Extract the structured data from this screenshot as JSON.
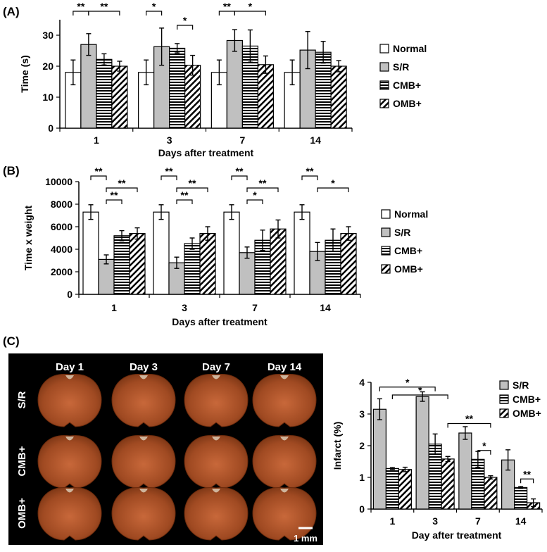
{
  "colors": {
    "normal": "#ffffff",
    "sr": "#c0c0c0",
    "stroke": "#000000",
    "photo_bg": "#000000",
    "brain": "#b5582a"
  },
  "chart_data": [
    {
      "panel_label": "(A)",
      "type": "bar",
      "categories": [
        "1",
        "3",
        "7",
        "14"
      ],
      "xlabel": "Days after treatment",
      "ylabel": "Time (s)",
      "ylim": [
        0,
        35
      ],
      "yticks": [
        0,
        10,
        20,
        30
      ],
      "legend_position": "right",
      "series": [
        {
          "name": "Normal",
          "fill": "normal",
          "values": [
            18,
            18,
            18,
            18
          ],
          "errors": [
            4,
            4,
            4,
            4
          ]
        },
        {
          "name": "S/R",
          "fill": "sr",
          "values": [
            27,
            26.3,
            28.3,
            25.2
          ],
          "errors": [
            3.5,
            6,
            3.5,
            6
          ]
        },
        {
          "name": "CMB+",
          "fill": "hlines",
          "values": [
            22.2,
            25.8,
            26.5,
            24.5
          ],
          "errors": [
            1.8,
            1.5,
            5.2,
            3.5
          ]
        },
        {
          "name": "OMB+",
          "fill": "diag",
          "values": [
            20,
            20.3,
            20.5,
            20
          ],
          "errors": [
            1.6,
            3.2,
            2.8,
            1.8
          ]
        }
      ],
      "significance": [
        {
          "category": 0,
          "from": 0,
          "to": 1,
          "label": "**",
          "level": 1
        },
        {
          "category": 0,
          "from": 1,
          "to": 3,
          "label": "**",
          "level": 1
        },
        {
          "category": 1,
          "from": 0,
          "to": 1,
          "label": "*",
          "level": 1
        },
        {
          "category": 1,
          "from": 2,
          "to": 3,
          "label": "*",
          "level": 0
        },
        {
          "category": 2,
          "from": 0,
          "to": 1,
          "label": "**",
          "level": 1
        },
        {
          "category": 2,
          "from": 1,
          "to": 3,
          "label": "*",
          "level": 1
        }
      ]
    },
    {
      "panel_label": "(B)",
      "type": "bar",
      "categories": [
        "1",
        "3",
        "7",
        "14"
      ],
      "xlabel": "Days after treatment",
      "ylabel": "Time x weight",
      "ylim": [
        0,
        10000
      ],
      "yticks": [
        0,
        2000,
        4000,
        6000,
        8000,
        10000
      ],
      "legend_position": "right",
      "series": [
        {
          "name": "Normal",
          "fill": "normal",
          "values": [
            7300,
            7300,
            7300,
            7300
          ],
          "errors": [
            650,
            650,
            650,
            650
          ]
        },
        {
          "name": "S/R",
          "fill": "sr",
          "values": [
            3100,
            2800,
            3700,
            3800
          ],
          "errors": [
            400,
            500,
            500,
            800
          ]
        },
        {
          "name": "CMB+",
          "fill": "hlines",
          "values": [
            5200,
            4500,
            4800,
            4800
          ],
          "errors": [
            450,
            500,
            900,
            1000
          ]
        },
        {
          "name": "OMB+",
          "fill": "diag",
          "values": [
            5400,
            5400,
            5800,
            5400
          ],
          "errors": [
            500,
            600,
            800,
            600
          ]
        }
      ],
      "significance": [
        {
          "category": 0,
          "from": 0,
          "to": 1,
          "label": "**",
          "level": 2
        },
        {
          "category": 0,
          "from": 1,
          "to": 2,
          "label": "**",
          "level": 0
        },
        {
          "category": 0,
          "from": 1,
          "to": 3,
          "label": "**",
          "level": 1
        },
        {
          "category": 1,
          "from": 0,
          "to": 1,
          "label": "**",
          "level": 2
        },
        {
          "category": 1,
          "from": 1,
          "to": 2,
          "label": "**",
          "level": 0
        },
        {
          "category": 1,
          "from": 1,
          "to": 3,
          "label": "**",
          "level": 1
        },
        {
          "category": 2,
          "from": 0,
          "to": 1,
          "label": "**",
          "level": 2
        },
        {
          "category": 2,
          "from": 1,
          "to": 2,
          "label": "*",
          "level": 0
        },
        {
          "category": 2,
          "from": 1,
          "to": 3,
          "label": "**",
          "level": 1
        },
        {
          "category": 3,
          "from": 0,
          "to": 1,
          "label": "**",
          "level": 2
        },
        {
          "category": 3,
          "from": 1,
          "to": 3,
          "label": "*",
          "level": 1
        }
      ]
    },
    {
      "panel_label": "(C)",
      "type": "bar",
      "categories": [
        "1",
        "3",
        "7",
        "14"
      ],
      "xlabel": "Day after treatment",
      "ylabel": "Infarct (%)",
      "ylim": [
        0,
        4
      ],
      "yticks": [
        0,
        1,
        2,
        3,
        4
      ],
      "legend_position": "top-right",
      "series": [
        {
          "name": "S/R",
          "fill": "sr",
          "values": [
            3.15,
            3.55,
            2.4,
            1.55
          ],
          "errors": [
            0.33,
            0.15,
            0.2,
            0.32
          ]
        },
        {
          "name": "CMB+",
          "fill": "hlines",
          "values": [
            1.28,
            2.05,
            1.57,
            0.68
          ],
          "errors": [
            0.03,
            0.32,
            0.25,
            0.03
          ]
        },
        {
          "name": "OMB+",
          "fill": "diag",
          "values": [
            1.25,
            1.58,
            1.0,
            0.2
          ],
          "errors": [
            0.07,
            0.08,
            0.05,
            0.12
          ]
        }
      ],
      "significance": [
        {
          "from": [
            0,
            0
          ],
          "to": [
            1,
            1
          ],
          "label": "*",
          "y": 3.85
        },
        {
          "from": [
            0,
            1
          ],
          "to": [
            1,
            2
          ],
          "label": "*",
          "y": 3.6
        },
        {
          "from": [
            1,
            2
          ],
          "to": [
            2,
            2
          ],
          "label": "**",
          "y": 2.7
        },
        {
          "from": [
            2,
            1
          ],
          "to": [
            2,
            2
          ],
          "label": "*",
          "y": 1.85
        },
        {
          "from": [
            3,
            1
          ],
          "to": [
            3,
            2
          ],
          "label": "**",
          "y": 0.95
        }
      ]
    }
  ],
  "photo": {
    "columns": [
      "Day 1",
      "Day 3",
      "Day 7",
      "Day 14"
    ],
    "rows": [
      "S/R",
      "CMB+",
      "OMB+"
    ],
    "scale_bar": "1 mm"
  }
}
